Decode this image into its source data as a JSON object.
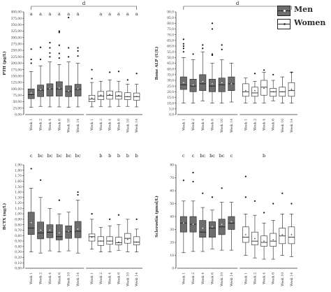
{
  "legend": {
    "men_label": "Men",
    "women_label": "Women",
    "men_color": "#6e6e6e",
    "women_color": "#ffffff"
  },
  "chart_data": [
    {
      "type": "boxplot",
      "ylabel": "PTH (pg/L)",
      "ylim": [
        0,
        400
      ],
      "yticks": [
        0,
        25,
        50,
        75,
        100,
        125,
        150,
        175,
        200,
        225,
        250,
        275,
        300,
        325,
        350,
        375,
        400
      ],
      "tick_labels": [
        "0,00",
        "25,00",
        "50,00",
        "75,00",
        "100,00",
        "125,00",
        "150,00",
        "175,00",
        "200,00",
        "225,00",
        "250,00",
        "275,00",
        "300,00",
        "325,00",
        "350,00",
        "375,00",
        "400,00"
      ],
      "categories": [
        "Week 1",
        "Week 2",
        "Week 4",
        "Week 6",
        "Week 10",
        "Week 14"
      ],
      "bracket_letter": "d",
      "series": [
        {
          "name": "Men",
          "letters": [
            "a",
            "a",
            "a",
            "a",
            "a",
            "a"
          ],
          "boxes": [
            {
              "min": 28,
              "q1": 62,
              "median": 78,
              "q3": 100,
              "max": 168,
              "mean": 84,
              "outliers": [
                200,
                215,
                255
              ]
            },
            {
              "min": 32,
              "q1": 70,
              "median": 95,
              "q3": 115,
              "max": 190,
              "mean": 97,
              "outliers": [
                215,
                262
              ]
            },
            {
              "min": 30,
              "q1": 72,
              "median": 100,
              "q3": 120,
              "max": 205,
              "mean": 101,
              "outliers": [
                225,
                240,
                260,
                280
              ]
            },
            {
              "min": 30,
              "q1": 72,
              "median": 100,
              "q3": 128,
              "max": 195,
              "mean": 103,
              "outliers": [
                220,
                238,
                270,
                320,
                325
              ]
            },
            {
              "min": 28,
              "q1": 70,
              "median": 90,
              "q3": 112,
              "max": 205,
              "mean": 92,
              "outliers": [
                225,
                260,
                378
              ]
            },
            {
              "min": 30,
              "q1": 72,
              "median": 98,
              "q3": 118,
              "max": 200,
              "mean": 100,
              "outliers": [
                228,
                248,
                260
              ]
            }
          ]
        },
        {
          "name": "Women",
          "letters": [
            "",
            "a",
            "a",
            "a",
            "a",
            "a"
          ],
          "boxes": [
            {
              "min": 30,
              "q1": 50,
              "median": 60,
              "q3": 75,
              "max": 125,
              "mean": 64,
              "outliers": [
                140,
                175
              ]
            },
            {
              "min": 32,
              "q1": 58,
              "median": 72,
              "q3": 90,
              "max": 130,
              "mean": 76,
              "outliers": []
            },
            {
              "min": 30,
              "q1": 60,
              "median": 75,
              "q3": 92,
              "max": 135,
              "mean": 78,
              "outliers": [
                165
              ]
            },
            {
              "min": 32,
              "q1": 60,
              "median": 72,
              "q3": 88,
              "max": 130,
              "mean": 75,
              "outliers": [
                168
              ]
            },
            {
              "min": 32,
              "q1": 58,
              "median": 70,
              "q3": 85,
              "max": 118,
              "mean": 70,
              "outliers": [
                135
              ]
            },
            {
              "min": 30,
              "q1": 56,
              "median": 70,
              "q3": 84,
              "max": 118,
              "mean": 71,
              "outliers": [
                160
              ]
            }
          ]
        }
      ]
    },
    {
      "type": "boxplot",
      "ylabel": "Bone ALP (U/L)",
      "ylim": [
        0,
        90
      ],
      "yticks": [
        0,
        5,
        10,
        15,
        20,
        25,
        30,
        35,
        40,
        45,
        50,
        55,
        60,
        65,
        70,
        75,
        80,
        85,
        90
      ],
      "tick_labels": [
        "0,0",
        "5,0",
        "10,0",
        "15,0",
        "20,0",
        "25,0",
        "30,0",
        "35,0",
        "40,0",
        "45,0",
        "50,0",
        "55,0",
        "60,0",
        "65,0",
        "70,0",
        "75,0",
        "80,0",
        "85,0",
        "90,0"
      ],
      "categories": [
        "Week 1",
        "Week 2",
        "Week 4",
        "Week 6",
        "Week 10",
        "Week 14"
      ],
      "bracket_letter": "d",
      "series": [
        {
          "name": "Men",
          "letters": [
            "",
            "",
            "",
            "",
            "",
            ""
          ],
          "boxes": [
            {
              "min": 10,
              "q1": 22,
              "median": 26,
              "q3": 33,
              "max": 50,
              "mean": 28,
              "outliers": [
                55,
                58,
                60,
                62,
                66
              ]
            },
            {
              "min": 10,
              "q1": 20,
              "median": 25,
              "q3": 31,
              "max": 48,
              "mean": 26,
              "outliers": [
                53
              ]
            },
            {
              "min": 12,
              "q1": 21,
              "median": 27,
              "q3": 35,
              "max": 55,
              "mean": 29,
              "outliers": [
                58,
                61
              ]
            },
            {
              "min": 10,
              "q1": 20,
              "median": 25,
              "q3": 31,
              "max": 45,
              "mean": 27,
              "outliers": [
                52,
                53,
                75,
                80
              ]
            },
            {
              "min": 10,
              "q1": 20,
              "median": 26,
              "q3": 32,
              "max": 48,
              "mean": 28,
              "outliers": [
                57,
                61
              ]
            },
            {
              "min": 11,
              "q1": 21,
              "median": 27,
              "q3": 33,
              "max": 45,
              "mean": 27,
              "outliers": []
            }
          ]
        },
        {
          "name": "Women",
          "letters": [
            "",
            "",
            "",
            "",
            "",
            ""
          ],
          "boxes": [
            {
              "min": 10,
              "q1": 16,
              "median": 20,
              "q3": 27,
              "max": 32,
              "mean": 21,
              "outliers": []
            },
            {
              "min": 10,
              "q1": 16,
              "median": 19,
              "q3": 24,
              "max": 29,
              "mean": 21,
              "outliers": [
                36
              ]
            },
            {
              "min": 10,
              "q1": 17,
              "median": 24,
              "q3": 30,
              "max": 37,
              "mean": 23,
              "outliers": [
                39
              ]
            },
            {
              "min": 12,
              "q1": 16,
              "median": 20,
              "q3": 23,
              "max": 30,
              "mean": 20,
              "outliers": [
                35
              ]
            },
            {
              "min": 10,
              "q1": 16,
              "median": 20,
              "q3": 24,
              "max": 33,
              "mean": 20,
              "outliers": []
            },
            {
              "min": 10,
              "q1": 16,
              "median": 21,
              "q3": 28,
              "max": 37,
              "mean": 22,
              "outliers": [
                37
              ]
            }
          ]
        }
      ]
    },
    {
      "type": "boxplot",
      "ylabel": "BCTX (ng/L)",
      "ylim": [
        0,
        1.9
      ],
      "yticks": [
        0,
        0.1,
        0.2,
        0.3,
        0.4,
        0.5,
        0.6,
        0.7,
        0.8,
        0.9,
        1.0,
        1.1,
        1.2,
        1.3,
        1.4,
        1.5,
        1.6,
        1.7,
        1.8,
        1.9
      ],
      "tick_labels": [
        "0,00",
        "0,10",
        "0,20",
        "0,30",
        "0,40",
        "0,50",
        "0,60",
        "0,70",
        "0,80",
        "0,90",
        "1,00",
        "1,10",
        "1,20",
        "1,30",
        "1,40",
        "1,50",
        "1,60",
        "1,70",
        "1,80",
        "1,90"
      ],
      "categories": [
        "Week 1",
        "Week 2",
        "Week 4",
        "Week 6",
        "Week 10",
        "Week 14"
      ],
      "bracket_letter": "",
      "series": [
        {
          "name": "Men",
          "letters": [
            "c",
            "bc",
            "bc",
            "bc",
            "bc",
            "bc"
          ],
          "boxes": [
            {
              "min": 0.3,
              "q1": 0.62,
              "median": 0.74,
              "q3": 1.03,
              "max": 1.47,
              "mean": 0.84,
              "outliers": [
                1.83
              ]
            },
            {
              "min": 0.28,
              "q1": 0.54,
              "median": 0.65,
              "q3": 0.85,
              "max": 1.3,
              "mean": 0.7,
              "outliers": [
                1.62
              ]
            },
            {
              "min": 0.32,
              "q1": 0.56,
              "median": 0.66,
              "q3": 0.8,
              "max": 1.1,
              "mean": 0.7,
              "outliers": []
            },
            {
              "min": 0.3,
              "q1": 0.52,
              "median": 0.58,
              "q3": 0.8,
              "max": 1.0,
              "mean": 0.65,
              "outliers": [
                1.25
              ]
            },
            {
              "min": 0.32,
              "q1": 0.55,
              "median": 0.67,
              "q3": 0.78,
              "max": 1.03,
              "mean": 0.68,
              "outliers": []
            },
            {
              "min": 0.28,
              "q1": 0.56,
              "median": 0.68,
              "q3": 0.86,
              "max": 1.25,
              "mean": 0.72,
              "outliers": [
                1.35,
                1.4
              ]
            }
          ]
        },
        {
          "name": "Women",
          "letters": [
            "",
            "b",
            "b",
            "b",
            "b",
            "b"
          ],
          "boxes": [
            {
              "min": 0.35,
              "q1": 0.5,
              "median": 0.58,
              "q3": 0.63,
              "max": 0.9,
              "mean": 0.57,
              "outliers": [
                1.0
              ]
            },
            {
              "min": 0.3,
              "q1": 0.42,
              "median": 0.5,
              "q3": 0.58,
              "max": 0.75,
              "mean": 0.5,
              "outliers": []
            },
            {
              "min": 0.3,
              "q1": 0.44,
              "median": 0.5,
              "q3": 0.58,
              "max": 0.78,
              "mean": 0.5,
              "outliers": [
                0.9
              ]
            },
            {
              "min": 0.33,
              "q1": 0.43,
              "median": 0.47,
              "q3": 0.57,
              "max": 0.8,
              "mean": 0.48,
              "outliers": [
                0.98
              ]
            },
            {
              "min": 0.3,
              "q1": 0.46,
              "median": 0.55,
              "q3": 0.64,
              "max": 0.9,
              "mean": 0.53,
              "outliers": []
            },
            {
              "min": 0.3,
              "q1": 0.43,
              "median": 0.48,
              "q3": 0.58,
              "max": 0.72,
              "mean": 0.48,
              "outliers": [
                0.9
              ]
            }
          ]
        }
      ]
    },
    {
      "type": "boxplot",
      "ylabel": "Sclerostin (pmol/L)",
      "ylim": [
        0,
        80
      ],
      "yticks": [
        0,
        10,
        20,
        30,
        40,
        50,
        60,
        70,
        80
      ],
      "tick_labels": [
        "0",
        "10",
        "20",
        "30",
        "40",
        "50",
        "60",
        "70",
        "80"
      ],
      "categories": [
        "Week 1",
        "Week 2",
        "Week 4",
        "Week 6",
        "Week 10",
        "Week 14"
      ],
      "bracket_letter": "",
      "series": [
        {
          "name": "Men",
          "letters": [
            "c",
            "c",
            "bc",
            "bc",
            "bc",
            "c"
          ],
          "boxes": [
            {
              "min": 12,
              "q1": 28,
              "median": 35,
              "q3": 40,
              "max": 52,
              "mean": 35,
              "outliers": [
                68
              ]
            },
            {
              "min": 13,
              "q1": 28,
              "median": 34,
              "q3": 40,
              "max": 52,
              "mean": 34,
              "outliers": [
                67,
                74
              ]
            },
            {
              "min": 13,
              "q1": 24,
              "median": 28,
              "q3": 37,
              "max": 47,
              "mean": 31,
              "outliers": [
                58
              ]
            },
            {
              "min": 15,
              "q1": 24,
              "median": 31,
              "q3": 36,
              "max": 45,
              "mean": 32,
              "outliers": [
                55
              ]
            },
            {
              "min": 14,
              "q1": 26,
              "median": 32,
              "q3": 38,
              "max": 51,
              "mean": 34,
              "outliers": [
                62
              ]
            },
            {
              "min": 14,
              "q1": 30,
              "median": 35,
              "q3": 40,
              "max": 51,
              "mean": 36,
              "outliers": []
            }
          ]
        },
        {
          "name": "Women",
          "letters": [
            "",
            "",
            "b",
            "",
            "",
            ""
          ],
          "boxes": [
            {
              "min": 10,
              "q1": 20,
              "median": 24,
              "q3": 32,
              "max": 42,
              "mean": 26,
              "outliers": [
                55,
                71
              ]
            },
            {
              "min": 8,
              "q1": 18,
              "median": 21,
              "q3": 28,
              "max": 41,
              "mean": 23,
              "outliers": [
                52
              ]
            },
            {
              "min": 7,
              "q1": 17,
              "median": 20,
              "q3": 25,
              "max": 35,
              "mean": 21,
              "outliers": [
                43
              ]
            },
            {
              "min": 7,
              "q1": 17,
              "median": 21,
              "q3": 27,
              "max": 37,
              "mean": 22,
              "outliers": [
                50
              ]
            },
            {
              "min": 10,
              "q1": 19,
              "median": 25,
              "q3": 31,
              "max": 42,
              "mean": 26,
              "outliers": [
                58
              ]
            },
            {
              "min": 9,
              "q1": 19,
              "median": 24,
              "q3": 32,
              "max": 42,
              "mean": 26,
              "outliers": [
                50
              ]
            }
          ]
        }
      ]
    }
  ]
}
